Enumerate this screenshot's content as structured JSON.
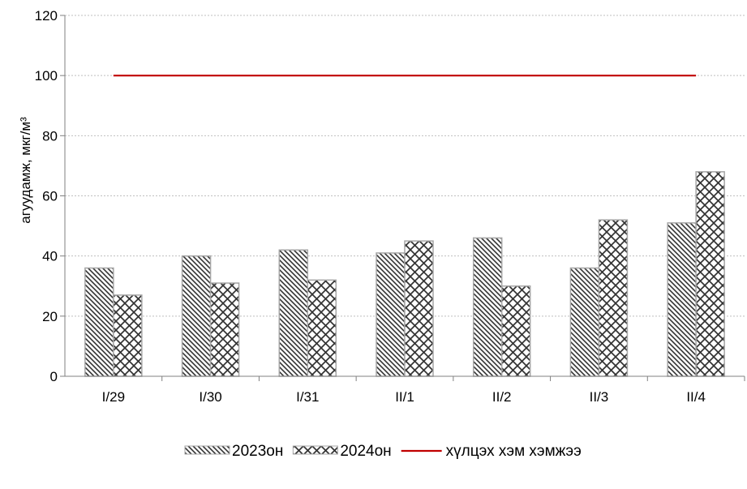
{
  "chart_data": {
    "type": "bar",
    "ylabel": "агуудамж, мкг/м³",
    "ylim": [
      0,
      120
    ],
    "yticks": [
      "0",
      "20",
      "40",
      "60",
      "80",
      "100",
      "120"
    ],
    "ytick_values": [
      0,
      20,
      40,
      60,
      80,
      100,
      120
    ],
    "categories": [
      "I/29",
      "I/30",
      "I/31",
      "II/1",
      "II/2",
      "II/3",
      "II/4"
    ],
    "series": [
      {
        "name": "2023он",
        "values": [
          36,
          40,
          42,
          41,
          46,
          36,
          51
        ],
        "pattern": "diagonal-hatch"
      },
      {
        "name": "2024он",
        "values": [
          27,
          31,
          32,
          45,
          30,
          52,
          68
        ],
        "pattern": "cross-hatch"
      }
    ],
    "reference_line": {
      "name": "хүлцэх хэм хэмжээ",
      "value": 100,
      "color": "#c00000"
    },
    "grid": true,
    "legend_position": "bottom"
  }
}
